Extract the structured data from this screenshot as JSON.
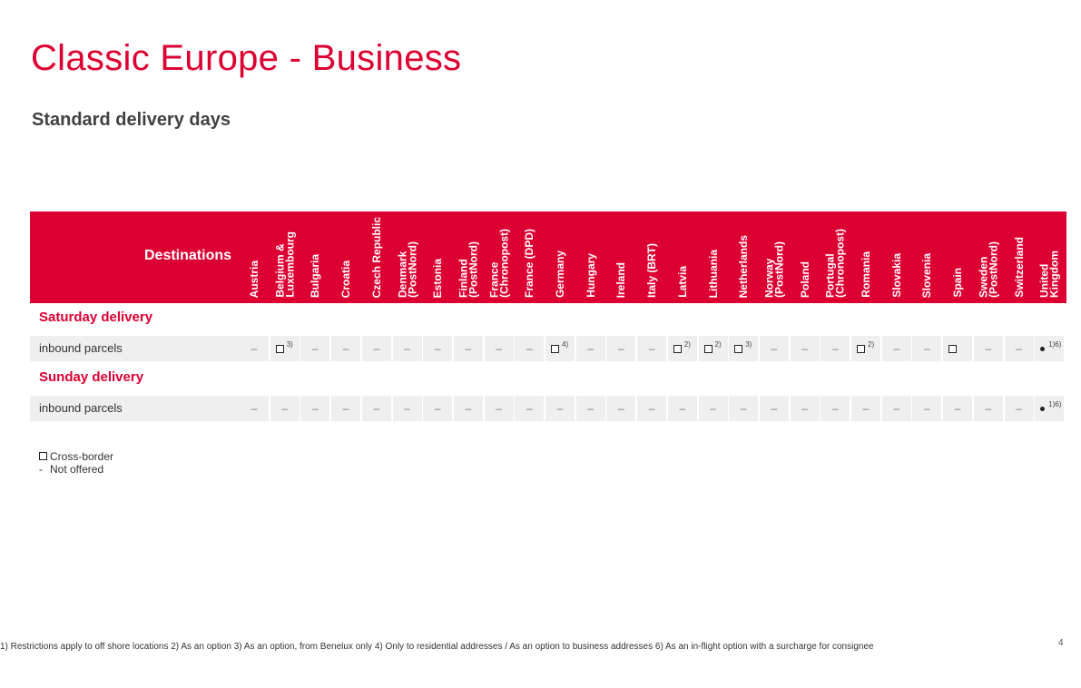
{
  "page": {
    "title": "Classic Europe - Business",
    "subtitle": "Standard delivery days",
    "page_number": "4"
  },
  "table": {
    "header_label": "Destinations",
    "columns": [
      {
        "line1": "Austria",
        "line2": ""
      },
      {
        "line1": "Belgium &",
        "line2": "Luxembourg"
      },
      {
        "line1": "Bulgaria",
        "line2": ""
      },
      {
        "line1": "Croatia",
        "line2": ""
      },
      {
        "line1": "Czech Republic",
        "line2": ""
      },
      {
        "line1": "Denmark",
        "line2": "(PostNord)"
      },
      {
        "line1": "Estonia",
        "line2": ""
      },
      {
        "line1": "Finland",
        "line2": "(PostNord)"
      },
      {
        "line1": "France",
        "line2": "(Chronopost)"
      },
      {
        "line1": "France (DPD)",
        "line2": ""
      },
      {
        "line1": "Germany",
        "line2": ""
      },
      {
        "line1": "Hungary",
        "line2": ""
      },
      {
        "line1": "Ireland",
        "line2": ""
      },
      {
        "line1": "Italy (BRT)",
        "line2": ""
      },
      {
        "line1": "Latvia",
        "line2": ""
      },
      {
        "line1": "Lithuania",
        "line2": ""
      },
      {
        "line1": "Netherlands",
        "line2": ""
      },
      {
        "line1": "Norway",
        "line2": "(PostNord)"
      },
      {
        "line1": "Poland",
        "line2": ""
      },
      {
        "line1": "Portugal",
        "line2": "(Chronopost)"
      },
      {
        "line1": "Romania",
        "line2": ""
      },
      {
        "line1": "Slovakia",
        "line2": ""
      },
      {
        "line1": "Slovenia",
        "line2": ""
      },
      {
        "line1": "Spain",
        "line2": ""
      },
      {
        "line1": "Sweden",
        "line2": "(PostNord)"
      },
      {
        "line1": "Switzerland",
        "line2": ""
      },
      {
        "line1": "United",
        "line2": "Kingdom"
      }
    ],
    "sections": [
      {
        "title": "Saturday delivery",
        "row_label": "inbound parcels",
        "cells": [
          {
            "type": "dash",
            "sup": ""
          },
          {
            "type": "box",
            "sup": "3)"
          },
          {
            "type": "dash",
            "sup": ""
          },
          {
            "type": "dash",
            "sup": ""
          },
          {
            "type": "dash",
            "sup": ""
          },
          {
            "type": "dash",
            "sup": ""
          },
          {
            "type": "dash",
            "sup": ""
          },
          {
            "type": "dash",
            "sup": ""
          },
          {
            "type": "dash",
            "sup": ""
          },
          {
            "type": "dash",
            "sup": ""
          },
          {
            "type": "box",
            "sup": "4)"
          },
          {
            "type": "dash",
            "sup": ""
          },
          {
            "type": "dash",
            "sup": ""
          },
          {
            "type": "dash",
            "sup": ""
          },
          {
            "type": "box",
            "sup": "2)"
          },
          {
            "type": "box",
            "sup": "2)"
          },
          {
            "type": "box",
            "sup": "3)"
          },
          {
            "type": "dash",
            "sup": ""
          },
          {
            "type": "dash",
            "sup": ""
          },
          {
            "type": "dash",
            "sup": ""
          },
          {
            "type": "box",
            "sup": "2)"
          },
          {
            "type": "dash",
            "sup": ""
          },
          {
            "type": "dash",
            "sup": ""
          },
          {
            "type": "box",
            "sup": ""
          },
          {
            "type": "dash",
            "sup": ""
          },
          {
            "type": "dash",
            "sup": ""
          },
          {
            "type": "dot",
            "sup": "1)6)"
          }
        ]
      },
      {
        "title": "Sunday delivery",
        "row_label": "inbound parcels",
        "cells": [
          {
            "type": "dash",
            "sup": ""
          },
          {
            "type": "dash",
            "sup": ""
          },
          {
            "type": "dash",
            "sup": ""
          },
          {
            "type": "dash",
            "sup": ""
          },
          {
            "type": "dash",
            "sup": ""
          },
          {
            "type": "dash",
            "sup": ""
          },
          {
            "type": "dash",
            "sup": ""
          },
          {
            "type": "dash",
            "sup": ""
          },
          {
            "type": "dash",
            "sup": ""
          },
          {
            "type": "dash",
            "sup": ""
          },
          {
            "type": "dash",
            "sup": ""
          },
          {
            "type": "dash",
            "sup": ""
          },
          {
            "type": "dash",
            "sup": ""
          },
          {
            "type": "dash",
            "sup": ""
          },
          {
            "type": "dash",
            "sup": ""
          },
          {
            "type": "dash",
            "sup": ""
          },
          {
            "type": "dash",
            "sup": ""
          },
          {
            "type": "dash",
            "sup": ""
          },
          {
            "type": "dash",
            "sup": ""
          },
          {
            "type": "dash",
            "sup": ""
          },
          {
            "type": "dash",
            "sup": ""
          },
          {
            "type": "dash",
            "sup": ""
          },
          {
            "type": "dash",
            "sup": ""
          },
          {
            "type": "dash",
            "sup": ""
          },
          {
            "type": "dash",
            "sup": ""
          },
          {
            "type": "dash",
            "sup": ""
          },
          {
            "type": "dot",
            "sup": "1)6)"
          }
        ]
      }
    ],
    "dash_symbol": "–"
  },
  "legend": {
    "cross_border": "Cross-border",
    "not_offered_symbol": "-",
    "not_offered": "Not offered"
  },
  "footnote": "1) Restrictions apply to off shore locations  2) As an option  3) As an option, from Benelux only  4) Only to residential addresses / As an option to business addresses  6) As an in-flight option with a surcharge for consignee",
  "colors": {
    "brand_red": "#dc0032",
    "row_background": "#efefef",
    "heading_dark": "#414042"
  }
}
